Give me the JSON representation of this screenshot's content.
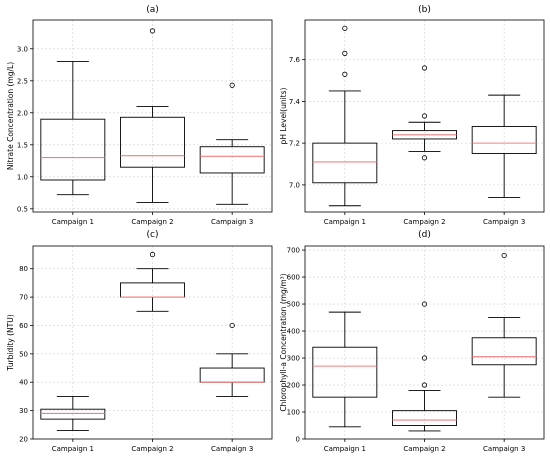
{
  "chart_data": [
    {
      "type": "box",
      "title": "(a)",
      "xlabel": "",
      "ylabel": "Nitrate Concentration (mg/L)",
      "categories": [
        "Campaign 1",
        "Campaign 2",
        "Campaign 3"
      ],
      "ylim": [
        0.45,
        3.45
      ],
      "yticks": [
        0.5,
        1.0,
        1.5,
        2.0,
        2.5,
        3.0
      ],
      "ytick_labels": [
        "0.5",
        "1.0",
        "1.5",
        "2.0",
        "2.5",
        "3.0"
      ],
      "boxes": [
        {
          "whislo": 0.72,
          "q1": 0.95,
          "med": 1.3,
          "q3": 1.9,
          "whishi": 2.8,
          "fliers": []
        },
        {
          "whislo": 0.6,
          "q1": 1.15,
          "med": 1.33,
          "q3": 1.93,
          "whishi": 2.1,
          "fliers": [
            3.28
          ]
        },
        {
          "whislo": 0.57,
          "q1": 1.06,
          "med": 1.32,
          "q3": 1.47,
          "whishi": 1.58,
          "fliers": [
            2.43
          ]
        }
      ],
      "median_color": "#f08080",
      "grid": true
    },
    {
      "type": "box",
      "title": "(b)",
      "xlabel": "",
      "ylabel": "pH Level(units)",
      "categories": [
        "Campaign 1",
        "Campaign 2",
        "Campaign 3"
      ],
      "ylim": [
        6.87,
        7.79
      ],
      "yticks": [
        7.0,
        7.2,
        7.4,
        7.6
      ],
      "ytick_labels": [
        "7.0",
        "7.2",
        "7.4",
        "7.6"
      ],
      "boxes": [
        {
          "whislo": 6.9,
          "q1": 7.01,
          "med": 7.11,
          "q3": 7.2,
          "whishi": 7.45,
          "fliers": [
            7.53,
            7.63,
            7.75
          ]
        },
        {
          "whislo": 7.16,
          "q1": 7.22,
          "med": 7.24,
          "q3": 7.26,
          "whishi": 7.3,
          "fliers": [
            7.13,
            7.33,
            7.56
          ]
        },
        {
          "whislo": 6.94,
          "q1": 7.15,
          "med": 7.2,
          "q3": 7.28,
          "whishi": 7.43,
          "fliers": []
        }
      ],
      "median_color": "#f08080",
      "grid": true
    },
    {
      "type": "box",
      "title": "(c)",
      "xlabel": "",
      "ylabel": "Turbidity (NTU)",
      "categories": [
        "Campaign 1",
        "Campaign 2",
        "Campaign 3"
      ],
      "ylim": [
        20,
        88
      ],
      "yticks": [
        20,
        30,
        40,
        50,
        60,
        70,
        80
      ],
      "ytick_labels": [
        "20",
        "30",
        "40",
        "50",
        "60",
        "70",
        "80"
      ],
      "boxes": [
        {
          "whislo": 23,
          "q1": 27,
          "med": 29,
          "q3": 30.5,
          "whishi": 35,
          "fliers": []
        },
        {
          "whislo": 65,
          "q1": 70,
          "med": 70,
          "q3": 75,
          "whishi": 80,
          "fliers": [
            85
          ]
        },
        {
          "whislo": 35,
          "q1": 40,
          "med": 40,
          "q3": 45,
          "whishi": 50,
          "fliers": [
            60
          ]
        }
      ],
      "median_color": "#f08080",
      "grid": true
    },
    {
      "type": "box",
      "title": "(d)",
      "xlabel": "",
      "ylabel": "Chlorophyll-a Concentration (mg/m³)",
      "categories": [
        "Campaign 1",
        "Campaign 2",
        "Campaign 3"
      ],
      "ylim": [
        0,
        715
      ],
      "yticks": [
        0,
        100,
        200,
        300,
        400,
        500,
        600,
        700
      ],
      "ytick_labels": [
        "0",
        "100",
        "200",
        "300",
        "400",
        "500",
        "600",
        "700"
      ],
      "boxes": [
        {
          "whislo": 45,
          "q1": 155,
          "med": 270,
          "q3": 340,
          "whishi": 470,
          "fliers": []
        },
        {
          "whislo": 30,
          "q1": 50,
          "med": 70,
          "q3": 105,
          "whishi": 180,
          "fliers": [
            200,
            300,
            500
          ]
        },
        {
          "whislo": 155,
          "q1": 275,
          "med": 305,
          "q3": 375,
          "whishi": 450,
          "fliers": [
            680
          ]
        }
      ],
      "median_color": "#f08080",
      "grid": true
    }
  ]
}
